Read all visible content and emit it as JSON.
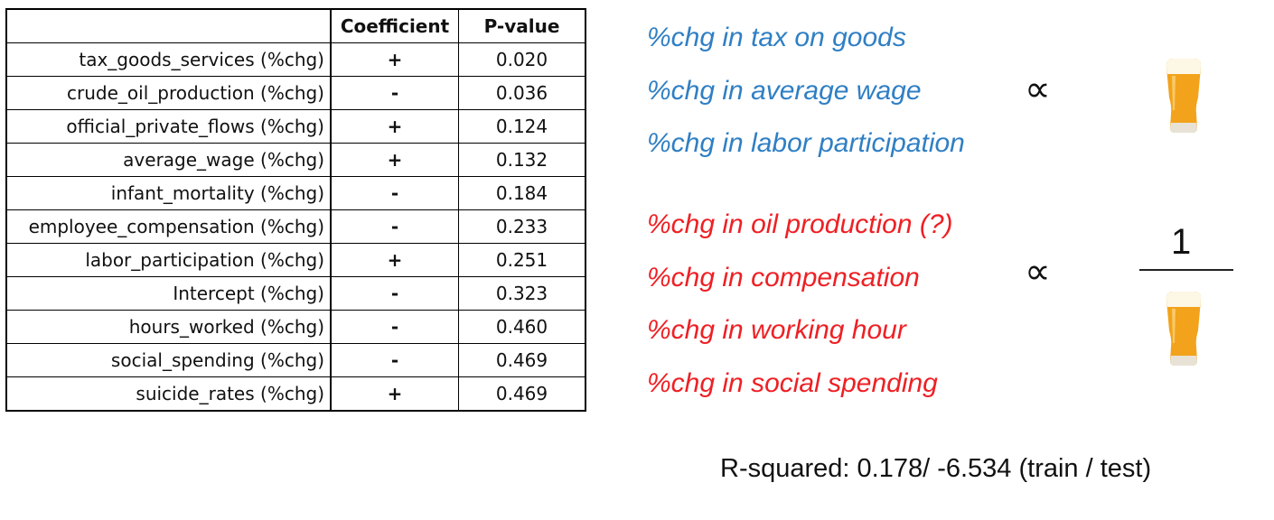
{
  "table": {
    "headers": [
      "",
      "Coefficient",
      "P-value"
    ],
    "rows": [
      {
        "variable": "tax_goods_services (%chg)",
        "coefficient": "+",
        "p_value": "0.020"
      },
      {
        "variable": "crude_oil_production (%chg)",
        "coefficient": "-",
        "p_value": "0.036"
      },
      {
        "variable": "official_private_flows (%chg)",
        "coefficient": "+",
        "p_value": "0.124"
      },
      {
        "variable": "average_wage (%chg)",
        "coefficient": "+",
        "p_value": "0.132"
      },
      {
        "variable": "infant_mortality (%chg)",
        "coefficient": "-",
        "p_value": "0.184"
      },
      {
        "variable": "employee_compensation (%chg)",
        "coefficient": "-",
        "p_value": "0.233"
      },
      {
        "variable": "labor_participation (%chg)",
        "coefficient": "+",
        "p_value": "0.251"
      },
      {
        "variable": "Intercept (%chg)",
        "coefficient": "-",
        "p_value": "0.323"
      },
      {
        "variable": "hours_worked (%chg)",
        "coefficient": "-",
        "p_value": "0.460"
      },
      {
        "variable": "social_spending (%chg)",
        "coefficient": "-",
        "p_value": "0.469"
      },
      {
        "variable": "suicide_rates (%chg)",
        "coefficient": "+",
        "p_value": "0.469"
      }
    ]
  },
  "positive_factors": [
    "%chg in tax on goods",
    "%chg in average wage",
    "%chg in labor participation"
  ],
  "negative_factors": [
    "%chg in oil production (?)",
    "%chg in compensation",
    "%chg in working hour",
    "%chg in social spending"
  ],
  "proportional_symbol": "∝",
  "inverse_numerator": "1",
  "icons": {
    "beer": "beer-glass-icon"
  },
  "r_squared_text": "R-squared: 0.178/ -6.534 (train / test)",
  "colors": {
    "positive": "#2f7fc4",
    "negative": "#ee2024",
    "beer": "#f2a31b",
    "foam": "#fdf7e6"
  }
}
